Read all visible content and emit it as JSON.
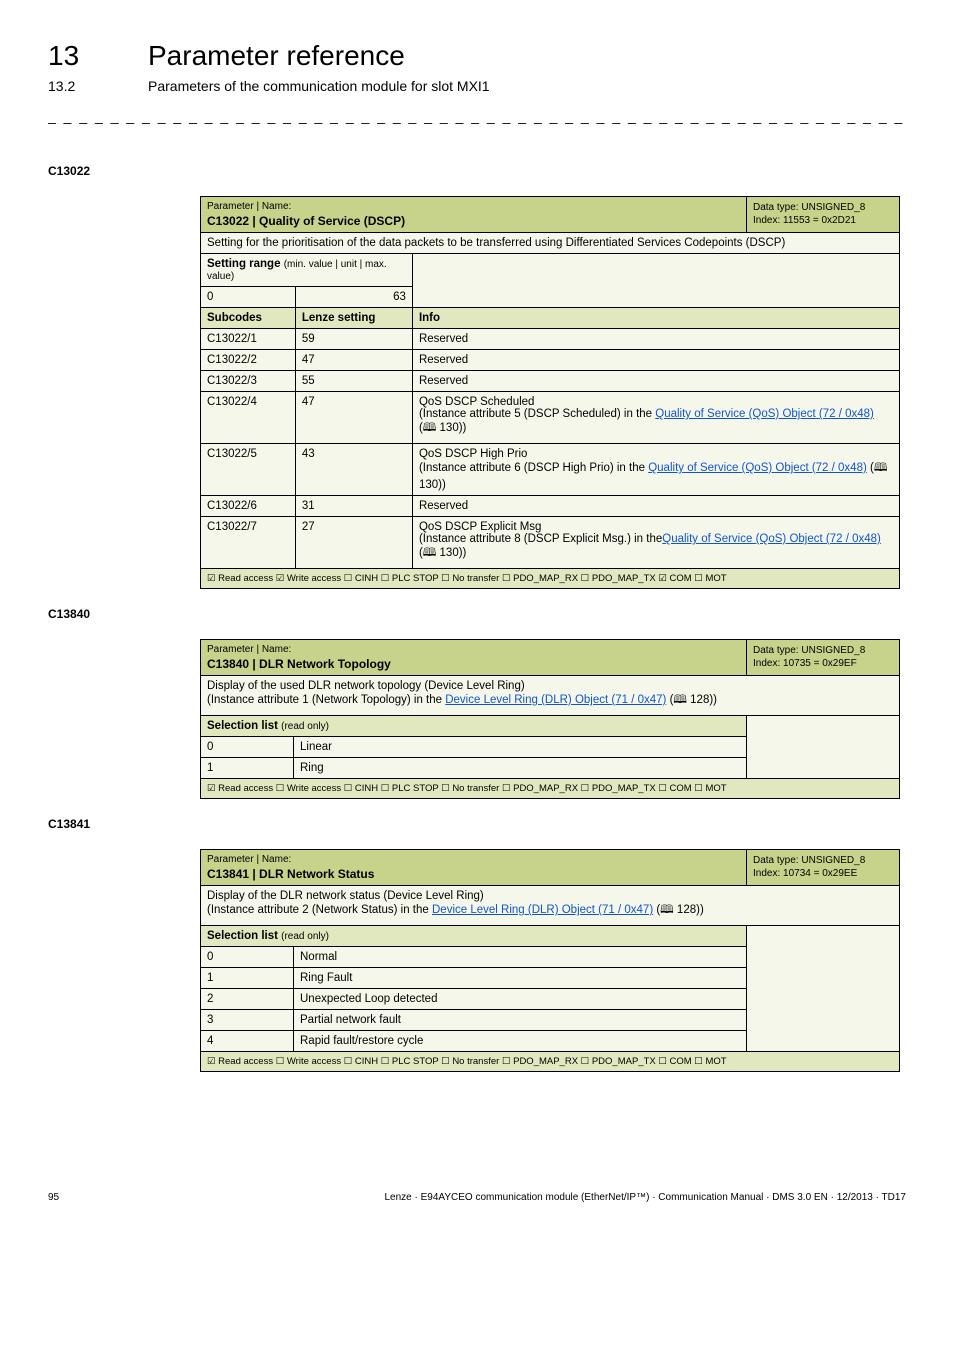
{
  "header": {
    "chapter_num": "13",
    "chapter_title": "Parameter reference",
    "section_num": "13.2",
    "section_title": "Parameters of the communication module for slot MXI1"
  },
  "dashes": "_ _ _ _ _ _ _ _ _ _ _ _ _ _ _ _ _ _ _ _ _ _ _ _ _ _ _ _ _ _ _ _ _ _ _ _ _ _ _ _ _ _ _ _ _ _ _ _ _ _ _ _ _ _ _ _ _ _ _ _ _ _ _",
  "labels": {
    "param_label": "Parameter | Name:",
    "data_type_label": "Data type:",
    "index_label": "Index:"
  },
  "c13022": {
    "code": "C13022",
    "name": "C13022 | Quality of Service (DSCP)",
    "data_type": "UNSIGNED_8",
    "index": "11553 = 0x2D21",
    "description": "Setting for the prioritisation of the data packets to be transferred using Differentiated Services Codepoints (DSCP)",
    "setting_range_label": "Setting range",
    "setting_range_note": "(min. value | unit | max. value)",
    "range_min": "0",
    "range_max": "63",
    "subcodes_header": "Subcodes",
    "lenze_setting_header": "Lenze setting",
    "info_header": "Info",
    "rows": [
      {
        "sub": "C13022/1",
        "setting": "59",
        "info_plain": "Reserved"
      },
      {
        "sub": "C13022/2",
        "setting": "47",
        "info_plain": "Reserved"
      },
      {
        "sub": "C13022/3",
        "setting": "55",
        "info_plain": "Reserved"
      },
      {
        "sub": "C13022/4",
        "setting": "47",
        "info_line1": "QoS DSCP Scheduled",
        "info_line2_a": "(Instance attribute 5 (DSCP Scheduled) in the ",
        "info_link": "Quality of Service (QoS) Object (72 / 0x48)",
        "info_ref": " (🕮 130))"
      },
      {
        "sub": "C13022/5",
        "setting": "43",
        "info_line1": "QoS DSCP High Prio",
        "info_line2_a": "(Instance attribute 6 (DSCP High Prio) in the ",
        "info_link": "Quality of Service (QoS) Object (72 / 0x48)",
        "info_ref": " (🕮 130))"
      },
      {
        "sub": "C13022/6",
        "setting": "31",
        "info_plain": "Reserved"
      },
      {
        "sub": "C13022/7",
        "setting": "27",
        "info_line1": "QoS DSCP Explicit Msg",
        "info_line2_a": "(Instance attribute 8 (DSCP Explicit Msg.) in the",
        "info_link": "Quality of Service (QoS) Object (72 / 0x48)",
        "info_ref": " (🕮 130))"
      }
    ],
    "footer": "☑ Read access   ☑ Write access   ☐ CINH   ☐ PLC STOP   ☐ No transfer   ☐ PDO_MAP_RX   ☐ PDO_MAP_TX   ☑ COM   ☐ MOT"
  },
  "c13840": {
    "code": "C13840",
    "name": "C13840 | DLR Network Topology",
    "data_type": "UNSIGNED_8",
    "index": "10735 = 0x29EF",
    "desc_line1": "Display of the used DLR network topology (Device Level Ring)",
    "desc_line2_a": "(Instance attribute 1 (Network Topology) in the ",
    "desc_link": "Device Level Ring (DLR) Object (71 / 0x47)",
    "desc_ref": " (🕮 128))",
    "selection_label": "Selection list",
    "selection_note": "(read only)",
    "rows": [
      {
        "n": "0",
        "v": "Linear"
      },
      {
        "n": "1",
        "v": "Ring"
      }
    ],
    "footer": "☑ Read access   ☐ Write access   ☐ CINH   ☐ PLC STOP   ☐ No transfer   ☐ PDO_MAP_RX   ☐ PDO_MAP_TX   ☐ COM   ☐ MOT"
  },
  "c13841": {
    "code": "C13841",
    "name": "C13841 | DLR Network Status",
    "data_type": "UNSIGNED_8",
    "index": "10734 = 0x29EE",
    "desc_line1": "Display of the DLR network status (Device Level Ring)",
    "desc_line2_a": "(Instance attribute 2 (Network Status) in the ",
    "desc_link": "Device Level Ring (DLR) Object (71 / 0x47)",
    "desc_ref": " (🕮 128))",
    "selection_label": "Selection list",
    "selection_note": "(read only)",
    "rows": [
      {
        "n": "0",
        "v": "Normal"
      },
      {
        "n": "1",
        "v": "Ring Fault"
      },
      {
        "n": "2",
        "v": "Unexpected Loop detected"
      },
      {
        "n": "3",
        "v": "Partial network fault"
      },
      {
        "n": "4",
        "v": "Rapid fault/restore cycle"
      }
    ],
    "footer": "☑ Read access   ☐ Write access   ☐ CINH   ☐ PLC STOP   ☐ No transfer   ☐ PDO_MAP_RX   ☐ PDO_MAP_TX   ☐ COM   ☐ MOT"
  },
  "footer": {
    "page": "95",
    "text": "Lenze · E94AYCEO communication module (EtherNet/IP™) · Communication Manual · DMS 3.0 EN · 12/2013 · TD17"
  }
}
